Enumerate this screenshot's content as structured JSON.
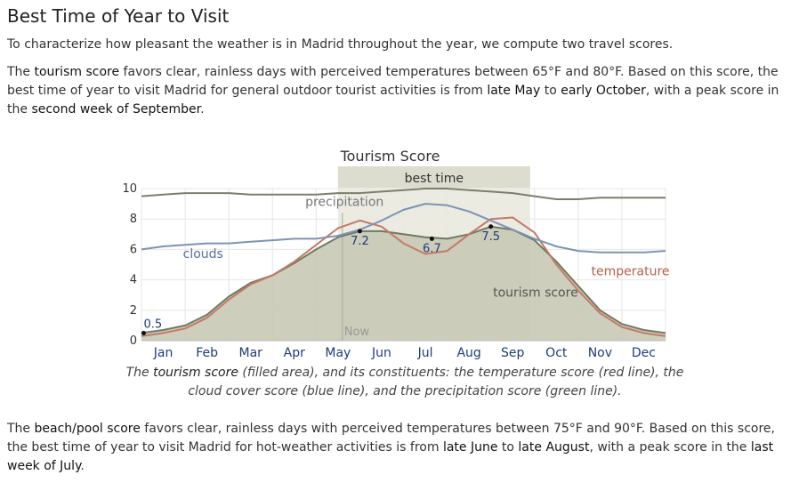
{
  "section": {
    "title": "Best Time of Year to Visit",
    "intro": "To characterize how pleasant the weather is in Madrid throughout the year, we compute two travel scores.",
    "tourism": {
      "p1": "The ",
      "term": "tourism score",
      "p2": " favors clear, rainless days with perceived temperatures between 65°F and 80°F. Based on this score, the best time of year to visit Madrid for general outdoor tourist activities is from ",
      "start": "late May",
      "p3": " to ",
      "end": "early October",
      "p4": ", with a peak score in the ",
      "peak": "second week of September",
      "p5": "."
    },
    "caption": {
      "c1": "The ",
      "term": "tourism score",
      "c2": " (filled area), and its constituents: the temperature score (red line), the cloud cover score (blue line), and the precipitation score (green line)."
    },
    "beach": {
      "p1": "The ",
      "term": "beach/pool score",
      "p2": " favors clear, rainless days with perceived temperatures between 75°F and 90°F. Based on this score, the best time of year to visit Madrid for hot-weather activities is from ",
      "start": "late June",
      "p3": " to ",
      "end": "late August",
      "p4": ", with a peak score in the ",
      "peak": "last week of July",
      "p5": "."
    }
  },
  "chart_data": {
    "type": "area",
    "title": "Tourism Score",
    "ylim": [
      0,
      10
    ],
    "yticks": [
      "0",
      "2",
      "4",
      "6",
      "8",
      "10"
    ],
    "xlim": [
      0,
      12
    ],
    "months": [
      "Jan",
      "Feb",
      "Mar",
      "Apr",
      "May",
      "Jun",
      "Jul",
      "Aug",
      "Sep",
      "Oct",
      "Nov",
      "Dec"
    ],
    "grid": true,
    "best_time": {
      "label": "best time",
      "start": 4.5,
      "end": 8.9
    },
    "now": {
      "label": "Now",
      "x": 4.6
    },
    "series": [
      {
        "name": "tourism score",
        "kind": "area",
        "color": "#6f7a62",
        "fill": "#c9c9b6",
        "x": [
          0,
          0.5,
          1,
          1.5,
          2,
          2.5,
          3,
          3.5,
          4,
          4.5,
          5,
          5.5,
          6,
          6.5,
          7,
          7.5,
          8,
          8.5,
          9,
          9.5,
          10,
          10.5,
          11,
          11.5,
          12
        ],
        "values": [
          0.5,
          0.7,
          1.0,
          1.7,
          2.9,
          3.8,
          4.3,
          5.1,
          6.0,
          6.8,
          7.2,
          7.2,
          7.0,
          6.8,
          6.7,
          7.0,
          7.5,
          7.3,
          6.6,
          5.2,
          3.6,
          2.0,
          1.1,
          0.7,
          0.5
        ]
      },
      {
        "name": "temperature",
        "kind": "line",
        "color": "#c47a66",
        "x": [
          0,
          0.5,
          1,
          1.5,
          2,
          2.5,
          3,
          3.5,
          4,
          4.5,
          5,
          5.5,
          6,
          6.5,
          7,
          7.5,
          8,
          8.5,
          9,
          9.5,
          10,
          10.5,
          11,
          11.5,
          12
        ],
        "values": [
          0.3,
          0.5,
          0.8,
          1.5,
          2.7,
          3.7,
          4.3,
          5.2,
          6.3,
          7.4,
          7.9,
          7.5,
          6.4,
          5.7,
          5.9,
          7.0,
          8.0,
          8.1,
          7.1,
          5.0,
          3.3,
          1.8,
          0.9,
          0.5,
          0.3
        ]
      },
      {
        "name": "clouds",
        "kind": "line",
        "color": "#7d93b6",
        "x": [
          0,
          0.5,
          1,
          1.5,
          2,
          2.5,
          3,
          3.5,
          4,
          4.5,
          5,
          5.5,
          6,
          6.5,
          7,
          7.5,
          8,
          8.5,
          9,
          9.5,
          10,
          10.5,
          11,
          11.5,
          12
        ],
        "values": [
          6.0,
          6.2,
          6.3,
          6.4,
          6.4,
          6.5,
          6.6,
          6.7,
          6.7,
          6.9,
          7.3,
          7.9,
          8.6,
          9.0,
          8.9,
          8.5,
          7.9,
          7.3,
          6.7,
          6.2,
          5.9,
          5.8,
          5.8,
          5.8,
          5.9
        ]
      },
      {
        "name": "precipitation",
        "kind": "line",
        "color": "#7a7f6d",
        "x": [
          0,
          0.5,
          1,
          1.5,
          2,
          2.5,
          3,
          3.5,
          4,
          4.5,
          5,
          5.5,
          6,
          6.5,
          7,
          7.5,
          8,
          8.5,
          9,
          9.5,
          10,
          10.5,
          11,
          11.5,
          12
        ],
        "values": [
          9.5,
          9.6,
          9.7,
          9.7,
          9.7,
          9.6,
          9.6,
          9.6,
          9.6,
          9.7,
          9.7,
          9.8,
          9.9,
          10.0,
          10.0,
          9.9,
          9.8,
          9.7,
          9.5,
          9.3,
          9.3,
          9.4,
          9.4,
          9.4,
          9.4
        ]
      }
    ],
    "point_labels": [
      {
        "x": 0.05,
        "y": 0.5,
        "text": "0.5"
      },
      {
        "x": 5.0,
        "y": 7.2,
        "text": "7.2"
      },
      {
        "x": 6.65,
        "y": 6.7,
        "text": "6.7"
      },
      {
        "x": 8.0,
        "y": 7.5,
        "text": "7.5"
      }
    ],
    "series_labels": [
      {
        "series": "precipitation",
        "text": "precipitation",
        "x": 3.75,
        "y": 8.85
      },
      {
        "series": "clouds",
        "text": "clouds",
        "x": 0.95,
        "y": 5.45
      },
      {
        "series": "temperature",
        "text": "temperature",
        "x": 10.3,
        "y": 4.3
      },
      {
        "series": "tourism score",
        "text": "tourism score",
        "x": 8.05,
        "y": 2.9
      }
    ]
  }
}
